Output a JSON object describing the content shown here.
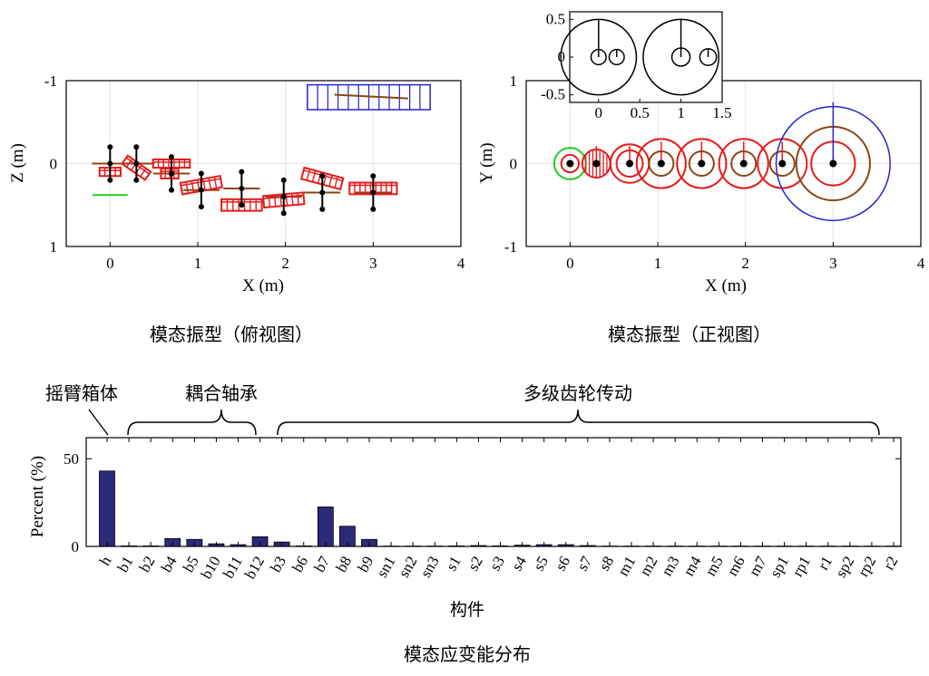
{
  "captions": {
    "top_view": "模态振型（俯视图）",
    "front_view": "模态振型（正视图）",
    "bottom": "模态应变能分布"
  },
  "groups": {
    "housing": "摇臂箱体",
    "bearings": "耦合轴承",
    "gears": "多级齿轮传动"
  },
  "colors": {
    "gear": "#e51b1b",
    "housing": "#2323d6",
    "shaft": "#8b4513",
    "green": "#22cc22",
    "bar": "#2b2a7a",
    "grid": "#e4e4e4"
  },
  "chart_data": [
    {
      "id": "top",
      "type": "scatter",
      "title": "模态振型（俯视图）",
      "xlabel": "X (m)",
      "ylabel": "Z (m)",
      "xlim": [
        -0.5,
        4
      ],
      "ylim": [
        -1,
        1
      ],
      "y_reversed": true,
      "xticks": [
        "0",
        "1",
        "2",
        "3",
        "4"
      ],
      "yticks": [
        "-1",
        "0",
        "1"
      ],
      "gears": [
        {
          "x": 0.0,
          "z": 0.1,
          "w": 0.24,
          "h": 0.1,
          "angle": 0
        },
        {
          "x": 0.3,
          "z": 0.05,
          "w": 0.32,
          "h": 0.12,
          "angle": 35
        },
        {
          "x": 0.7,
          "z": 0.0,
          "w": 0.42,
          "h": 0.1,
          "angle": 0
        },
        {
          "x": 0.68,
          "z": 0.12,
          "w": 0.2,
          "h": 0.12,
          "angle": 0
        },
        {
          "x": 1.04,
          "z": 0.26,
          "w": 0.46,
          "h": 0.14,
          "angle": -10
        },
        {
          "x": 1.5,
          "z": 0.5,
          "w": 0.46,
          "h": 0.14,
          "angle": 0
        },
        {
          "x": 1.98,
          "z": 0.44,
          "w": 0.46,
          "h": 0.14,
          "angle": -5
        },
        {
          "x": 2.42,
          "z": 0.18,
          "w": 0.46,
          "h": 0.14,
          "angle": 15
        },
        {
          "x": 3.0,
          "z": 0.3,
          "w": 0.54,
          "h": 0.14,
          "angle": 0
        }
      ],
      "shafts": [
        {
          "x": 0.0,
          "z": 0.0,
          "len": 0.2
        },
        {
          "x": 0.3,
          "z": 0.0,
          "len": 0.2
        },
        {
          "x": 0.7,
          "z": 0.12,
          "len": 0.2
        },
        {
          "x": 1.04,
          "z": 0.32,
          "len": 0.2
        },
        {
          "x": 1.5,
          "z": 0.3,
          "len": 0.2
        },
        {
          "x": 1.98,
          "z": 0.4,
          "len": 0.2
        },
        {
          "x": 2.42,
          "z": 0.35,
          "len": 0.2
        },
        {
          "x": 3.0,
          "z": 0.35,
          "len": 0.2
        }
      ],
      "housing": {
        "x0": 2.25,
        "x1": 3.65,
        "z0": -0.95,
        "z1": -0.65
      },
      "green_line": {
        "x0": -0.2,
        "x1": 0.2,
        "z": 0.38
      }
    },
    {
      "id": "front",
      "type": "scatter",
      "title": "模态振型（正视图）",
      "xlabel": "X (m)",
      "ylabel": "Y (m)",
      "xlim": [
        -0.5,
        4
      ],
      "ylim": [
        -1,
        1
      ],
      "xticks": [
        "0",
        "1",
        "2",
        "3",
        "4"
      ],
      "yticks": [
        "-1",
        "0",
        "1"
      ],
      "circles": [
        {
          "x": 0.0,
          "y": 0.0,
          "rx": 0.18,
          "color": "green"
        },
        {
          "x": 0.0,
          "y": 0.0,
          "rx": 0.1,
          "color": "gear"
        },
        {
          "x": 0.3,
          "y": 0.0,
          "rx": 0.16,
          "color": "gear",
          "hatched": true
        },
        {
          "x": 0.68,
          "y": 0.0,
          "rx": 0.22,
          "color": "gear"
        },
        {
          "x": 0.68,
          "y": 0.0,
          "rx": 0.15,
          "color": "gear"
        },
        {
          "x": 1.04,
          "y": 0.0,
          "rx": 0.28,
          "color": "gear"
        },
        {
          "x": 1.04,
          "y": 0.0,
          "rx": 0.14,
          "color": "shaft"
        },
        {
          "x": 1.5,
          "y": 0.0,
          "rx": 0.28,
          "color": "gear"
        },
        {
          "x": 1.5,
          "y": 0.0,
          "rx": 0.14,
          "color": "shaft"
        },
        {
          "x": 1.98,
          "y": 0.0,
          "rx": 0.28,
          "color": "gear"
        },
        {
          "x": 1.98,
          "y": 0.0,
          "rx": 0.14,
          "color": "shaft"
        },
        {
          "x": 2.42,
          "y": 0.0,
          "rx": 0.28,
          "color": "gear"
        },
        {
          "x": 2.42,
          "y": 0.0,
          "rx": 0.14,
          "color": "shaft"
        },
        {
          "x": 3.0,
          "y": 0.0,
          "rx": 0.65,
          "color": "housing"
        },
        {
          "x": 3.0,
          "y": 0.0,
          "rx": 0.42,
          "color": "shaft"
        },
        {
          "x": 3.0,
          "y": 0.0,
          "rx": 0.25,
          "color": "gear"
        }
      ],
      "spokes": [
        {
          "x": 0.3,
          "len": 0.2
        },
        {
          "x": 0.68,
          "len": 0.2
        },
        {
          "x": 1.04,
          "len": 0.25
        },
        {
          "x": 1.5,
          "len": 0.25
        },
        {
          "x": 1.98,
          "len": 0.25
        },
        {
          "x": 2.42,
          "len": 0.25
        },
        {
          "x": 3.0,
          "len": 0.7
        }
      ],
      "hubs": [
        0.0,
        0.3,
        0.68,
        1.04,
        1.5,
        1.98,
        2.42,
        3.0
      ]
    },
    {
      "id": "inset",
      "type": "scatter",
      "xlim": [
        -0.35,
        1.5
      ],
      "ylim": [
        -0.6,
        0.6
      ],
      "xticks": [
        "0",
        "0.5",
        "1",
        "1.5"
      ],
      "yticks": [
        "0.5",
        "0",
        "-0.5"
      ],
      "circles": [
        {
          "x": 0.0,
          "y": 0.0,
          "r": 0.5
        },
        {
          "x": 0.0,
          "y": 0.0,
          "r": 0.1
        },
        {
          "x": 0.22,
          "y": 0.0,
          "r": 0.1
        },
        {
          "x": 1.0,
          "y": 0.0,
          "r": 0.5
        },
        {
          "x": 1.0,
          "y": 0.0,
          "r": 0.12
        },
        {
          "x": 1.33,
          "y": 0.0,
          "r": 0.11
        }
      ],
      "spokes": [
        {
          "x": 0.0,
          "y0": 0.0,
          "y1": 0.5
        },
        {
          "x": 1.0,
          "y0": 0.0,
          "y1": 0.5
        },
        {
          "x": 0.22,
          "y0": 0.0,
          "y1": 0.1
        },
        {
          "x": 1.33,
          "y0": 0.0,
          "y1": 0.11
        }
      ]
    },
    {
      "id": "bars",
      "type": "bar",
      "title": "模态应变能分布",
      "xlabel": "构件",
      "ylabel": "Percent (%)",
      "ylim": [
        0,
        62
      ],
      "yticks": [
        "0",
        "50"
      ],
      "categories": [
        "h",
        "b1",
        "b2",
        "b4",
        "b5",
        "b10",
        "b11",
        "b12",
        "b3",
        "b6",
        "b7",
        "b8",
        "b9",
        "sn1",
        "sn2",
        "sn3",
        "s1",
        "s2",
        "s3",
        "s4",
        "s5",
        "s6",
        "s7",
        "s8",
        "m1",
        "m2",
        "m3",
        "m4",
        "m5",
        "m6",
        "m7",
        "sp1",
        "rp1",
        "r1",
        "sp2",
        "rp2",
        "r2"
      ],
      "values": [
        43,
        0.3,
        0.3,
        4.5,
        4,
        1.5,
        1,
        5.5,
        2.5,
        0.3,
        22.5,
        11.5,
        4,
        0.2,
        0.2,
        0.2,
        0.3,
        0.5,
        0.3,
        0.7,
        1,
        1,
        0.5,
        0.2,
        0.2,
        0.2,
        0.2,
        0.2,
        0.2,
        0.2,
        0.2,
        0.2,
        0.2,
        0.2,
        0.2,
        0.2,
        0.2
      ]
    }
  ]
}
